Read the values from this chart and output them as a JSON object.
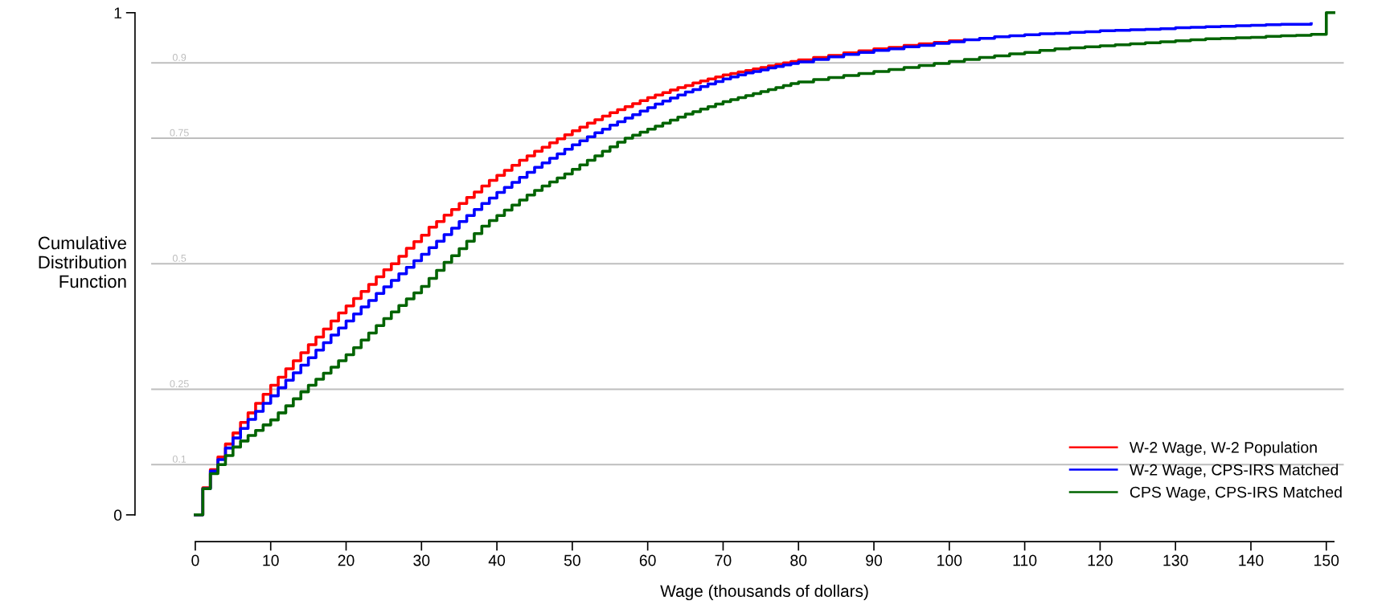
{
  "chart_data": {
    "type": "step",
    "xlabel": "Wage (thousands of dollars)",
    "ylabel": "Cumulative\nDistribution\nFunction",
    "x": [
      0,
      1,
      2,
      3,
      4,
      5,
      6,
      7,
      8,
      9,
      10,
      11,
      12,
      13,
      14,
      15,
      16,
      17,
      18,
      19,
      20,
      21,
      22,
      23,
      24,
      25,
      26,
      27,
      28,
      29,
      30,
      31,
      32,
      33,
      34,
      35,
      36,
      37,
      38,
      39,
      40,
      41,
      42,
      43,
      44,
      45,
      46,
      47,
      48,
      49,
      50,
      51,
      52,
      53,
      54,
      55,
      56,
      57,
      58,
      59,
      60,
      61,
      62,
      63,
      64,
      65,
      66,
      67,
      68,
      69,
      70,
      71,
      72,
      73,
      74,
      75,
      76,
      77,
      78,
      79,
      80,
      82,
      84,
      86,
      88,
      90,
      92,
      94,
      96,
      98,
      100,
      102,
      104,
      106,
      108,
      110,
      112,
      114,
      116,
      118,
      120,
      122,
      124,
      126,
      128,
      130,
      132,
      134,
      136,
      138,
      140,
      142,
      144,
      146,
      148,
      150,
      151
    ],
    "series": [
      {
        "name": "W-2 Wage, W-2 Population",
        "color": "#ff0000",
        "values": [
          0,
          0.054,
          0.09,
          0.115,
          0.141,
          0.163,
          0.184,
          0.203,
          0.222,
          0.24,
          0.258,
          0.274,
          0.291,
          0.307,
          0.323,
          0.339,
          0.354,
          0.37,
          0.386,
          0.402,
          0.416,
          0.431,
          0.445,
          0.459,
          0.474,
          0.488,
          0.5,
          0.515,
          0.531,
          0.544,
          0.557,
          0.573,
          0.584,
          0.597,
          0.608,
          0.62,
          0.632,
          0.643,
          0.655,
          0.666,
          0.676,
          0.686,
          0.696,
          0.706,
          0.715,
          0.724,
          0.732,
          0.741,
          0.749,
          0.757,
          0.765,
          0.772,
          0.78,
          0.787,
          0.794,
          0.801,
          0.807,
          0.813,
          0.819,
          0.825,
          0.831,
          0.836,
          0.841,
          0.846,
          0.851,
          0.855,
          0.86,
          0.864,
          0.868,
          0.872,
          0.876,
          0.879,
          0.882,
          0.885,
          0.888,
          0.891,
          0.894,
          0.897,
          0.9,
          0.903,
          0.906,
          0.911,
          0.915,
          0.92,
          0.924,
          0.928,
          0.931,
          0.935,
          0.938,
          0.941,
          0.944,
          0.946,
          null,
          null,
          null,
          null,
          null,
          null,
          null,
          null,
          null,
          null,
          null,
          null,
          null,
          null,
          null,
          null,
          null,
          null,
          null,
          null,
          null,
          null,
          null,
          null,
          null
        ]
      },
      {
        "name": "W-2 Wage, CPS-IRS Matched",
        "color": "#0000ff",
        "values": [
          0,
          0.052,
          0.087,
          0.11,
          0.133,
          0.153,
          0.172,
          0.19,
          0.206,
          0.222,
          0.237,
          0.253,
          0.268,
          0.283,
          0.298,
          0.313,
          0.328,
          0.343,
          0.358,
          0.372,
          0.386,
          0.4,
          0.414,
          0.427,
          0.441,
          0.454,
          0.467,
          0.48,
          0.493,
          0.506,
          0.519,
          0.532,
          0.545,
          0.558,
          0.571,
          0.584,
          0.596,
          0.608,
          0.62,
          0.631,
          0.642,
          0.652,
          0.662,
          0.672,
          0.682,
          0.692,
          0.701,
          0.71,
          0.719,
          0.728,
          0.737,
          0.745,
          0.753,
          0.761,
          0.768,
          0.776,
          0.783,
          0.79,
          0.797,
          0.804,
          0.811,
          0.818,
          0.824,
          0.83,
          0.836,
          0.842,
          0.847,
          0.853,
          0.858,
          0.863,
          0.868,
          0.872,
          0.876,
          0.88,
          0.883,
          0.886,
          0.89,
          0.893,
          0.896,
          0.899,
          0.902,
          0.907,
          0.912,
          0.917,
          0.921,
          0.925,
          0.928,
          0.932,
          0.935,
          0.939,
          0.942,
          0.946,
          0.949,
          0.952,
          0.954,
          0.956,
          0.958,
          0.959,
          0.961,
          0.962,
          0.964,
          0.965,
          0.966,
          0.967,
          0.968,
          0.97,
          0.971,
          0.972,
          0.973,
          0.974,
          0.975,
          0.976,
          0.977,
          0.977,
          0.978,
          null,
          null
        ]
      },
      {
        "name": "CPS Wage, CPS-IRS Matched",
        "color": "#006400",
        "values": [
          0,
          0.052,
          0.082,
          0.1,
          0.118,
          0.135,
          0.147,
          0.158,
          0.168,
          0.179,
          0.189,
          0.203,
          0.217,
          0.231,
          0.245,
          0.258,
          0.27,
          0.282,
          0.294,
          0.307,
          0.319,
          0.333,
          0.348,
          0.362,
          0.377,
          0.391,
          0.404,
          0.417,
          0.43,
          0.442,
          0.455,
          0.471,
          0.487,
          0.503,
          0.516,
          0.53,
          0.545,
          0.56,
          0.575,
          0.586,
          0.596,
          0.607,
          0.617,
          0.627,
          0.637,
          0.646,
          0.655,
          0.663,
          0.671,
          0.679,
          0.688,
          0.697,
          0.706,
          0.715,
          0.724,
          0.733,
          0.742,
          0.75,
          0.756,
          0.762,
          0.768,
          0.774,
          0.78,
          0.786,
          0.792,
          0.798,
          0.803,
          0.808,
          0.813,
          0.818,
          0.823,
          0.827,
          0.831,
          0.835,
          0.839,
          0.843,
          0.847,
          0.851,
          0.855,
          0.859,
          0.862,
          0.867,
          0.871,
          0.875,
          0.879,
          0.883,
          0.887,
          0.891,
          0.895,
          0.899,
          0.903,
          0.907,
          0.911,
          0.914,
          0.918,
          0.921,
          0.925,
          0.928,
          0.93,
          0.932,
          0.934,
          0.936,
          0.938,
          0.94,
          0.942,
          0.944,
          0.946,
          0.948,
          0.949,
          0.95,
          0.951,
          0.953,
          0.954,
          0.955,
          0.957,
          1,
          1
        ]
      }
    ],
    "xlim": [
      0,
      151
    ],
    "xticks": [
      0,
      10,
      20,
      30,
      40,
      50,
      60,
      70,
      80,
      90,
      100,
      110,
      120,
      130,
      140,
      150
    ],
    "ylim": [
      0,
      1
    ],
    "yticks": [
      0,
      1
    ],
    "ref_lines": [
      {
        "axis": "y",
        "value": 0.1,
        "label": "0.1",
        "color": "#bebebe"
      },
      {
        "axis": "y",
        "value": 0.25,
        "label": "0.25",
        "color": "#bebebe"
      },
      {
        "axis": "y",
        "value": 0.5,
        "label": "0.5",
        "color": "#bebebe"
      },
      {
        "axis": "y",
        "value": 0.75,
        "label": "0.75",
        "color": "#bebebe"
      },
      {
        "axis": "y",
        "value": 0.9,
        "label": "0.9",
        "color": "#bebebe"
      }
    ],
    "legend": "bottom right"
  }
}
